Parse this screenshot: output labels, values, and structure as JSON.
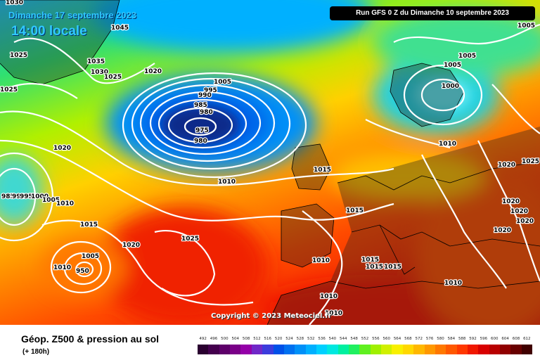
{
  "header": {
    "date": "Dimanche 17 septembre 2023",
    "time": "14:00 locale",
    "run": "Run GFS 0 Z du Dimanche 10 septembre 2023"
  },
  "copyright": "Copyright © 2023 Meteociel.fr",
  "footer": {
    "product": "Géop. Z500 & pression au sol",
    "lead": "(+ 180h)"
  },
  "scale": {
    "values": [
      "492",
      "496",
      "500",
      "504",
      "508",
      "512",
      "516",
      "520",
      "524",
      "528",
      "532",
      "536",
      "540",
      "544",
      "548",
      "552",
      "556",
      "560",
      "564",
      "568",
      "572",
      "576",
      "580",
      "584",
      "588",
      "592",
      "596",
      "600",
      "604",
      "608",
      "612"
    ],
    "colors": [
      "#2a0030",
      "#44004e",
      "#5e006a",
      "#7a0088",
      "#9400a8",
      "#7028c8",
      "#3c3cdc",
      "#0050e8",
      "#0070f0",
      "#0090f8",
      "#00b0ff",
      "#00d0ff",
      "#00e8e0",
      "#00f0a0",
      "#20f060",
      "#60f020",
      "#a0f000",
      "#d0f000",
      "#f8f000",
      "#ffd800",
      "#ffb800",
      "#ff9800",
      "#ff7800",
      "#ff5800",
      "#ff3800",
      "#f01800",
      "#d80000",
      "#b80000",
      "#900000",
      "#680000",
      "#400000"
    ]
  },
  "map": {
    "isobar_labels": [
      "1030",
      "1045",
      "1025",
      "1035",
      "1030",
      "1025",
      "1020",
      "1025",
      "1005",
      "995",
      "990",
      "985",
      "980",
      "975",
      "980",
      "1020",
      "1015",
      "1010",
      "985",
      "990",
      "995",
      "1000",
      "1005",
      "1010",
      "1015",
      "1005",
      "1010",
      "950",
      "1020",
      "1025",
      "1010",
      "1015",
      "1015",
      "1015",
      "1010",
      "1010",
      "1010",
      "1005",
      "1005",
      "1000",
      "1010",
      "1020",
      "1025",
      "1020",
      "1020",
      "1020",
      "1020",
      "1015",
      "1005"
    ]
  }
}
